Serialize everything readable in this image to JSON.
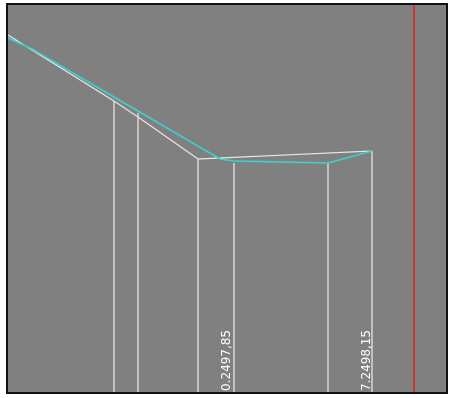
{
  "colors": {
    "background": "#808080",
    "frame": "#111111",
    "ground_line": "#e6e6e6",
    "profile_line": "#3fcfcf",
    "vertical_lines": "#ffffff",
    "marker_line": "#e02020",
    "label_text": "#ffffff"
  },
  "labels": {
    "station_1": "0.2497,85",
    "station_2": "7.2498,15"
  }
}
